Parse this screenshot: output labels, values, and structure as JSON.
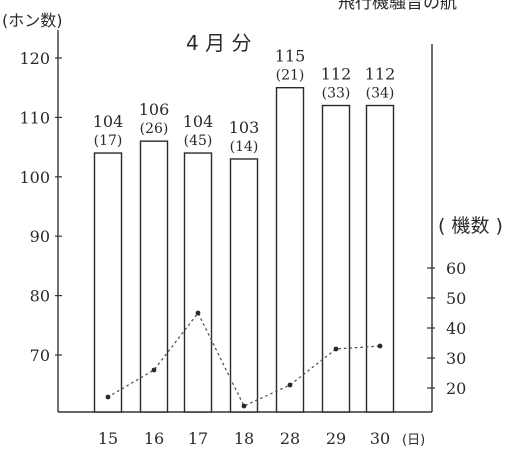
{
  "header_fragment": "飛行機騒音の航",
  "chart_data": {
    "type": "bar",
    "title": "4 月 分",
    "categories": [
      "15",
      "16",
      "17",
      "18",
      "28",
      "29",
      "30"
    ],
    "x_unit": "(日)",
    "series": [
      {
        "values": [
          104,
          106,
          104,
          103,
          115,
          112,
          112
        ],
        "value_labels": [
          "104",
          "106",
          "104",
          "103",
          "115",
          "112",
          "112"
        ],
        "sub_labels": [
          "(17)",
          "(26)",
          "(45)",
          "(14)",
          "(21)",
          "(33)",
          "(34)"
        ]
      },
      {
        "type": "line",
        "style": "dotted",
        "axis": "right",
        "values": [
          17,
          26,
          45,
          14,
          21,
          33,
          34
        ]
      }
    ],
    "left_axis": {
      "label": "(ホン数)",
      "ylim": [
        60,
        126
      ],
      "ticks": [
        "70",
        "80",
        "90",
        "100",
        "110",
        "120"
      ]
    },
    "right_axis": {
      "label": "( 機数 )",
      "ylim": [
        10,
        60
      ],
      "ticks": [
        "20",
        "30",
        "40",
        "50",
        "60"
      ]
    },
    "grid": false
  }
}
